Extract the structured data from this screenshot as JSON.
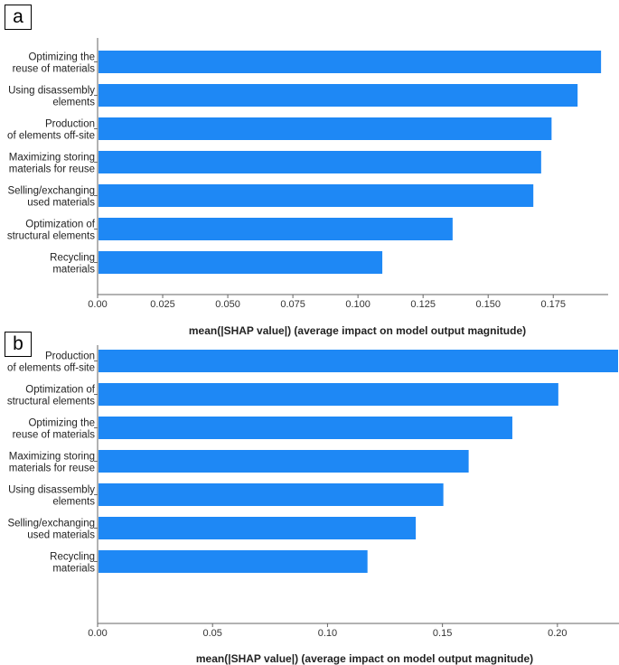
{
  "panels": [
    {
      "label": "a"
    },
    {
      "label": "b"
    }
  ],
  "colors": {
    "bar": "#1E88F5",
    "axis": "#666666"
  },
  "chart_data": [
    {
      "type": "bar",
      "orientation": "horizontal",
      "title": "",
      "xlabel": "mean(|SHAP value|) (average impact on model output magnitude)",
      "ylabel": "",
      "categories": [
        [
          "Optimizing the",
          "reuse of materials"
        ],
        [
          "Using disassembly",
          "elements"
        ],
        [
          "Production",
          "of elements off-site"
        ],
        [
          "Maximizing storing",
          "materials for reuse"
        ],
        [
          "Selling/exchanging",
          "used materials"
        ],
        [
          "Optimization of",
          "structural elements"
        ],
        [
          "Recycling",
          "materials"
        ]
      ],
      "values": [
        0.193,
        0.184,
        0.174,
        0.17,
        0.167,
        0.136,
        0.109
      ],
      "xlim": [
        0,
        0.194
      ],
      "ticks": [
        0.0,
        0.025,
        0.05,
        0.075,
        0.1,
        0.125,
        0.15,
        0.175
      ],
      "tick_labels": [
        "0.00",
        "0.025",
        "0.050",
        "0.075",
        "0.100",
        "0.125",
        "0.150",
        "0.175"
      ],
      "grid": false
    },
    {
      "type": "bar",
      "orientation": "horizontal",
      "title": "",
      "xlabel": "mean(|SHAP value|) (average impact on model output magnitude)",
      "ylabel": "",
      "categories": [
        [
          "Production",
          "of elements off-site"
        ],
        [
          "Optimization of",
          "structural elements"
        ],
        [
          "Optimizing the",
          "reuse of materials"
        ],
        [
          "Maximizing storing",
          "materials for reuse"
        ],
        [
          "Using disassembly",
          "elements"
        ],
        [
          "Selling/exchanging",
          "used materials"
        ],
        [
          "Recycling",
          "materials"
        ]
      ],
      "values": [
        0.226,
        0.2,
        0.18,
        0.161,
        0.15,
        0.138,
        0.117
      ],
      "xlim": [
        0,
        0.226
      ],
      "ticks": [
        0.0,
        0.05,
        0.1,
        0.15,
        0.2
      ],
      "tick_labels": [
        "0.00",
        "0.05",
        "0.10",
        "0.15",
        "0.20"
      ],
      "grid": false
    }
  ]
}
